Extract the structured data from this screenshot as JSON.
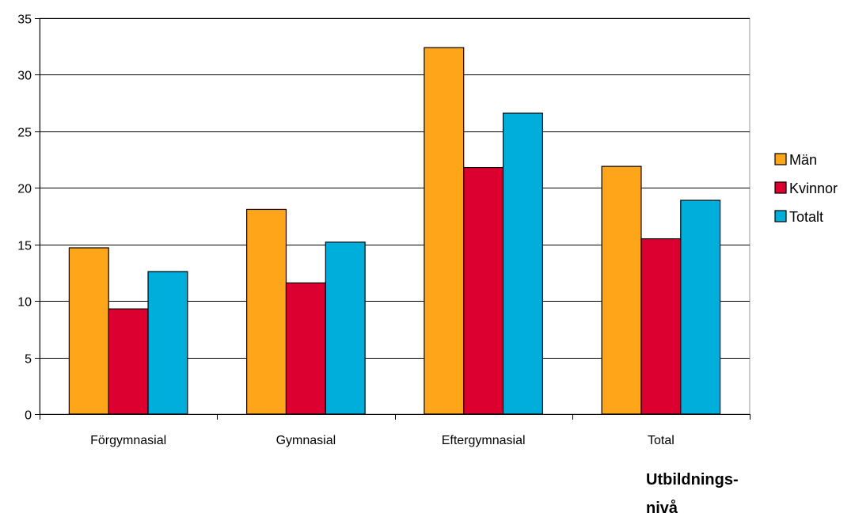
{
  "chart_data": {
    "type": "bar",
    "title": "",
    "ylabel": "",
    "xlabel_lines": [
      "Utbildnings-",
      "nivå"
    ],
    "categories": [
      "Förgymnasial",
      "Gymnasial",
      "Eftergymnasial",
      "Total"
    ],
    "series": [
      {
        "name": "Män",
        "color": "#FFA51A",
        "values": [
          14.7,
          18.1,
          32.4,
          21.9
        ]
      },
      {
        "name": "Kvinnor",
        "color": "#DC0030",
        "values": [
          9.3,
          11.6,
          21.8,
          15.5
        ]
      },
      {
        "name": "Totalt",
        "color": "#00AEDB",
        "values": [
          12.6,
          15.2,
          26.6,
          18.9
        ]
      }
    ],
    "ylim": [
      0,
      35
    ],
    "yticks": [
      0,
      5,
      10,
      15,
      20,
      25,
      30,
      35
    ],
    "grid": true,
    "legend_position": "right"
  }
}
